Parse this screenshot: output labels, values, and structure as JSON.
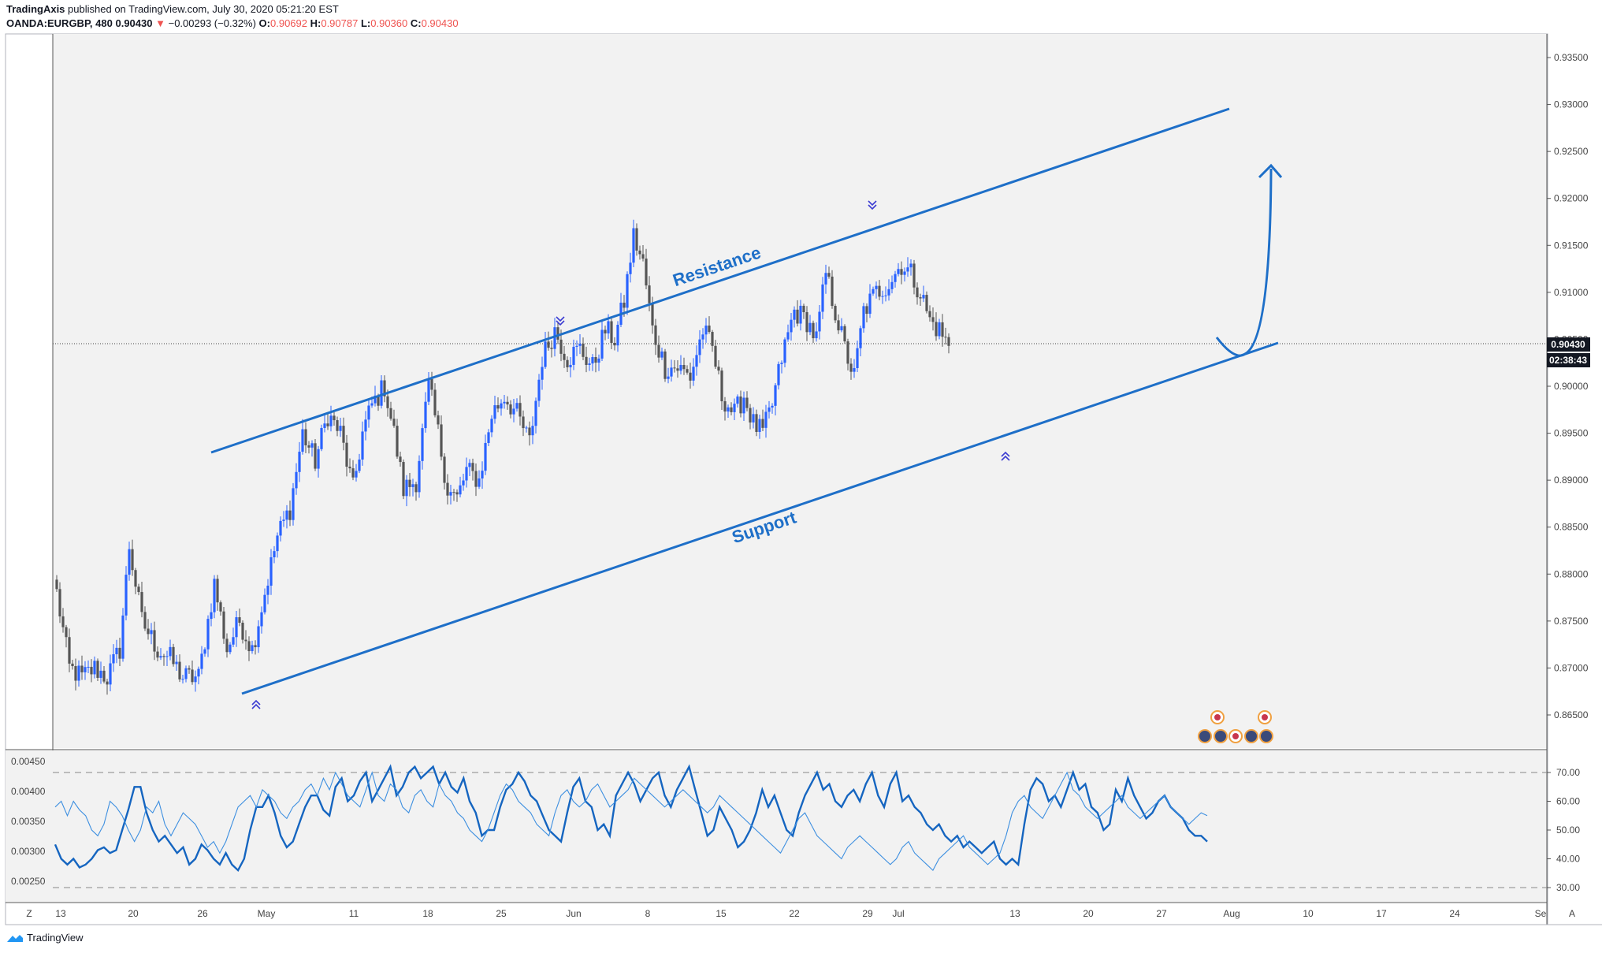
{
  "header": {
    "author": "TradingAxis",
    "published_text": "published on TradingView.com, July 30, 2020 05:21:20 EST",
    "symbol": "OANDA:EURGBP, 480",
    "last": "0.90430",
    "change_arrow": "▼",
    "change": "−0.00293 (−0.32%)",
    "o_label": "O:",
    "o_value": "0.90692",
    "h_label": "H:",
    "h_value": "0.90787",
    "l_label": "L:",
    "l_value": "0.90360",
    "c_label": "C:",
    "c_value": "0.90430"
  },
  "footer": {
    "brand": "TradingView",
    "logo_icon": "tradingview-logo-icon"
  },
  "colors": {
    "up": "#2962ff",
    "down": "#555555",
    "trendline": "#1e6fc8",
    "bg": "#f2f2f2",
    "price_tag": "#131722",
    "marker": "#3c3cd2"
  },
  "chart_data": [
    {
      "type": "candlestick",
      "symbol": "OANDA:EURGBP",
      "timeframe": "480",
      "ylim": [
        0.8615,
        0.9375
      ],
      "y_ticks": [
        "0.86500",
        "0.87000",
        "0.87500",
        "0.88000",
        "0.88500",
        "0.89000",
        "0.89500",
        "0.90000",
        "0.90500",
        "0.91000",
        "0.91500",
        "0.92000",
        "0.92500",
        "0.93000",
        "0.93500"
      ],
      "x_ticks": [
        "13",
        "20",
        "26",
        "May",
        "11",
        "18",
        "25",
        "Jun",
        "8",
        "15",
        "22",
        "29",
        "Jul",
        "13",
        "20",
        "27",
        "Aug",
        "10",
        "17",
        "24",
        "Se"
      ],
      "current_price_label": "0.90430",
      "countdown_label": "02:38:43",
      "close_path": [
        {
          "x": 0,
          "y": 0.878
        },
        {
          "x": 4,
          "y": 0.87
        },
        {
          "x": 8,
          "y": 0.869
        },
        {
          "x": 12,
          "y": 0.87
        },
        {
          "x": 16,
          "y": 0.869
        },
        {
          "x": 20,
          "y": 0.872
        },
        {
          "x": 23,
          "y": 0.883
        },
        {
          "x": 27,
          "y": 0.875
        },
        {
          "x": 32,
          "y": 0.872
        },
        {
          "x": 36,
          "y": 0.871
        },
        {
          "x": 40,
          "y": 0.869
        },
        {
          "x": 45,
          "y": 0.869
        },
        {
          "x": 50,
          "y": 0.879
        },
        {
          "x": 54,
          "y": 0.872
        },
        {
          "x": 58,
          "y": 0.875
        },
        {
          "x": 62,
          "y": 0.872
        },
        {
          "x": 66,
          "y": 0.878
        },
        {
          "x": 70,
          "y": 0.884
        },
        {
          "x": 74,
          "y": 0.887
        },
        {
          "x": 78,
          "y": 0.895
        },
        {
          "x": 82,
          "y": 0.892
        },
        {
          "x": 86,
          "y": 0.897
        },
        {
          "x": 90,
          "y": 0.895
        },
        {
          "x": 94,
          "y": 0.889
        },
        {
          "x": 97,
          "y": 0.895
        },
        {
          "x": 100,
          "y": 0.898
        },
        {
          "x": 104,
          "y": 0.9
        },
        {
          "x": 107,
          "y": 0.895
        },
        {
          "x": 110,
          "y": 0.889
        },
        {
          "x": 114,
          "y": 0.89
        },
        {
          "x": 118,
          "y": 0.9
        },
        {
          "x": 121,
          "y": 0.895
        },
        {
          "x": 124,
          "y": 0.889
        },
        {
          "x": 127,
          "y": 0.888
        },
        {
          "x": 130,
          "y": 0.891
        },
        {
          "x": 134,
          "y": 0.89
        },
        {
          "x": 138,
          "y": 0.897
        },
        {
          "x": 142,
          "y": 0.899
        },
        {
          "x": 146,
          "y": 0.897
        },
        {
          "x": 150,
          "y": 0.894
        },
        {
          "x": 154,
          "y": 0.903
        },
        {
          "x": 158,
          "y": 0.906
        },
        {
          "x": 162,
          "y": 0.903
        },
        {
          "x": 166,
          "y": 0.904
        },
        {
          "x": 170,
          "y": 0.902
        },
        {
          "x": 174,
          "y": 0.906
        },
        {
          "x": 177,
          "y": 0.905
        },
        {
          "x": 180,
          "y": 0.909
        },
        {
          "x": 183,
          "y": 0.916
        },
        {
          "x": 186,
          "y": 0.913
        },
        {
          "x": 189,
          "y": 0.906
        },
        {
          "x": 193,
          "y": 0.902
        },
        {
          "x": 197,
          "y": 0.902
        },
        {
          "x": 201,
          "y": 0.901
        },
        {
          "x": 205,
          "y": 0.906
        },
        {
          "x": 208,
          "y": 0.904
        },
        {
          "x": 211,
          "y": 0.899
        },
        {
          "x": 215,
          "y": 0.897
        },
        {
          "x": 218,
          "y": 0.899
        },
        {
          "x": 221,
          "y": 0.896
        },
        {
          "x": 224,
          "y": 0.895
        },
        {
          "x": 227,
          "y": 0.898
        },
        {
          "x": 230,
          "y": 0.903
        },
        {
          "x": 234,
          "y": 0.908
        },
        {
          "x": 238,
          "y": 0.907
        },
        {
          "x": 241,
          "y": 0.905
        },
        {
          "x": 244,
          "y": 0.912
        },
        {
          "x": 247,
          "y": 0.908
        },
        {
          "x": 250,
          "y": 0.904
        },
        {
          "x": 253,
          "y": 0.901
        },
        {
          "x": 256,
          "y": 0.908
        },
        {
          "x": 260,
          "y": 0.91
        },
        {
          "x": 264,
          "y": 0.911
        },
        {
          "x": 268,
          "y": 0.913
        },
        {
          "x": 271,
          "y": 0.912
        },
        {
          "x": 274,
          "y": 0.91
        },
        {
          "x": 277,
          "y": 0.907
        },
        {
          "x": 280,
          "y": 0.906
        },
        {
          "x": 283,
          "y": 0.9043
        }
      ],
      "indicator": {
        "left_axis_ticks": [
          "0.00450",
          "0.00400",
          "0.00350",
          "0.00300",
          "0.00250"
        ],
        "right_axis_ticks": [
          "70.00",
          "60.00",
          "50.00",
          "40.00",
          "30.00"
        ],
        "dashed_levels": [
          70,
          30
        ],
        "ylim": [
          27,
          78
        ],
        "series": [
          {
            "values": [
              45,
              40,
              38,
              40,
              37,
              38,
              40,
              43,
              44,
              42,
              43,
              50,
              57,
              65,
              65,
              56,
              50,
              46,
              48,
              45,
              42,
              44,
              38,
              40,
              45,
              43,
              40,
              38,
              42,
              38,
              36,
              40,
              50,
              58,
              58,
              62,
              56,
              48,
              44,
              46,
              52,
              58,
              62,
              62,
              57,
              55,
              65,
              68,
              60,
              62,
              67,
              70,
              60,
              64,
              68,
              72,
              62,
              65,
              70,
              72,
              68,
              70,
              72,
              66,
              70,
              65,
              63,
              68,
              60,
              56,
              48,
              50,
              50,
              58,
              64,
              66,
              70,
              67,
              62,
              60,
              55,
              50,
              48,
              46,
              56,
              65,
              68,
              60,
              58,
              50,
              52,
              48,
              62,
              66,
              70,
              66,
              60,
              64,
              68,
              70,
              62,
              58,
              64,
              68,
              72,
              64,
              56,
              48,
              50,
              58,
              54,
              50,
              44,
              46,
              50,
              56,
              64,
              58,
              62,
              56,
              50,
              48,
              56,
              62,
              66,
              70,
              64,
              66,
              60,
              58,
              62,
              64,
              60,
              66,
              70,
              62,
              58,
              66,
              70,
              60,
              62,
              58,
              56,
              52,
              50,
              52,
              48,
              46,
              48,
              44,
              46,
              44,
              42,
              44,
              46,
              40,
              38,
              40,
              38,
              52,
              64,
              68,
              66,
              60,
              62,
              58,
              64,
              70,
              64,
              66,
              58,
              56,
              50,
              52,
              64,
              60,
              68,
              62,
              58,
              54,
              56,
              60,
              62,
              58,
              56,
              54,
              50,
              48,
              48,
              46
            ]
          },
          {
            "values": [
              58,
              60,
              55,
              60,
              57,
              55,
              50,
              48,
              52,
              60,
              58,
              55,
              50,
              46,
              50,
              58,
              56,
              60,
              52,
              48,
              52,
              56,
              54,
              52,
              48,
              44,
              46,
              42,
              46,
              52,
              58,
              60,
              62,
              58,
              64,
              62,
              60,
              56,
              54,
              58,
              60,
              64,
              66,
              62,
              68,
              64,
              70,
              66,
              62,
              60,
              58,
              64,
              70,
              62,
              60,
              66,
              64,
              58,
              56,
              62,
              64,
              60,
              58,
              66,
              62,
              60,
              56,
              54,
              50,
              48,
              46,
              50,
              56,
              62,
              66,
              64,
              60,
              58,
              56,
              52,
              50,
              48,
              56,
              62,
              64,
              60,
              58,
              60,
              64,
              66,
              62,
              58,
              60,
              62,
              64,
              68,
              66,
              64,
              62,
              60,
              58,
              60,
              62,
              64,
              62,
              60,
              58,
              56,
              58,
              62,
              60,
              58,
              56,
              54,
              52,
              50,
              48,
              46,
              44,
              42,
              46,
              50,
              54,
              56,
              52,
              48,
              46,
              44,
              42,
              40,
              44,
              46,
              48,
              46,
              44,
              42,
              40,
              38,
              40,
              44,
              46,
              42,
              40,
              38,
              36,
              40,
              42,
              44,
              46,
              48,
              44,
              42,
              40,
              38,
              40,
              42,
              48,
              56,
              60,
              62,
              58,
              56,
              54,
              58,
              62,
              66,
              70,
              64,
              62,
              58,
              56,
              54,
              56,
              58,
              60,
              62,
              58,
              56,
              54,
              56,
              58,
              60,
              62,
              58,
              56,
              54,
              52,
              54,
              56,
              55
            ]
          }
        ]
      }
    }
  ],
  "annotations": {
    "resistance": "Resistance",
    "support": "Support"
  },
  "axis_controls": {
    "left": "Z",
    "right": "A"
  }
}
